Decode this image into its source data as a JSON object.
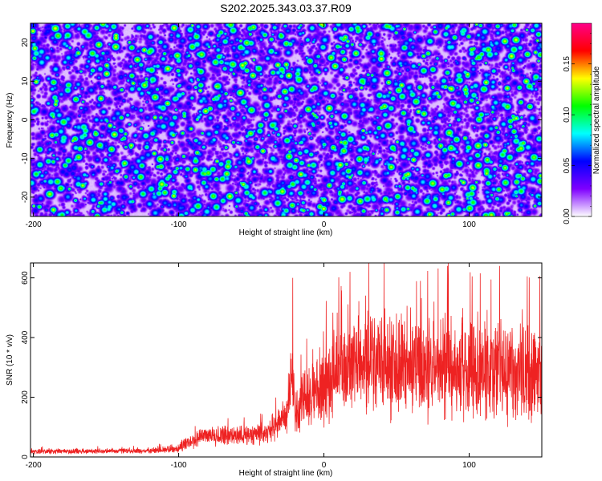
{
  "title": "S202.2025.343.03.37.R09",
  "chart_data": [
    {
      "type": "heatmap",
      "xlabel": "Height of straight line (km)",
      "ylabel": "Frequency (Hz)",
      "xlim": [
        -202,
        150
      ],
      "ylim": [
        -25,
        25
      ],
      "x_ticks": [
        -200,
        -100,
        0,
        100
      ],
      "x_tick_labels": [
        "-200",
        "-100",
        "0",
        "100"
      ],
      "y_ticks": [
        -20,
        -10,
        0,
        10,
        20
      ],
      "y_tick_labels": [
        "-20",
        "-10",
        "0",
        "10",
        "20"
      ],
      "colorbar": {
        "label": "Normalized spectral amplitude",
        "range": [
          0,
          0.19
        ],
        "ticks": [
          0,
          0.05,
          0.1,
          0.15
        ],
        "tick_labels": [
          "0.00",
          "0.05",
          "0.10",
          "0.15"
        ],
        "colormap": [
          "#ffffff",
          "#7f00ff",
          "#0000ff",
          "#00ffff",
          "#00ff00",
          "#ffff00",
          "#ff0000",
          "#ff0088"
        ]
      },
      "description_values": {
        "typical_amplitude": 0.035,
        "peak_amplitude": 0.1,
        "background_color_index": "blue-purple speckle"
      }
    },
    {
      "type": "line",
      "xlabel": "Height of straight line (km)",
      "ylabel": "SNR (10 * v/v)",
      "xlim": [
        -202,
        150
      ],
      "ylim": [
        0,
        650
      ],
      "x_ticks": [
        -200,
        -100,
        0,
        100
      ],
      "x_tick_labels": [
        "-200",
        "-100",
        "0",
        "100"
      ],
      "y_ticks": [
        0,
        200,
        400,
        600
      ],
      "y_tick_labels": [
        "0",
        "200",
        "400",
        "600"
      ],
      "series": [
        {
          "name": "SNR",
          "color": "#ee2222",
          "envelope": {
            "x": [
              -202,
              -120,
              -100,
              -85,
              -60,
              -40,
              -25,
              -22,
              -20,
              -10,
              0,
              10,
              20,
              30,
              50,
              80,
              100,
              120,
              150
            ],
            "mean": [
              18,
              20,
              28,
              70,
              75,
              80,
              140,
              300,
              150,
              200,
              240,
              280,
              310,
              320,
              300,
              300,
              290,
              290,
              280
            ],
            "spread": [
              10,
              10,
              18,
              40,
              40,
              45,
              70,
              120,
              90,
              120,
              160,
              180,
              190,
              200,
              200,
              200,
              200,
              210,
              200
            ]
          },
          "spikes": [
            {
              "x": -21.5,
              "y": 600
            },
            {
              "x": 31,
              "y": 650
            },
            {
              "x": 18,
              "y": 620
            },
            {
              "x": 85,
              "y": 640
            },
            {
              "x": 121,
              "y": 640
            },
            {
              "x": 140,
              "y": 605
            },
            {
              "x": 102,
              "y": 605
            }
          ]
        }
      ]
    }
  ]
}
